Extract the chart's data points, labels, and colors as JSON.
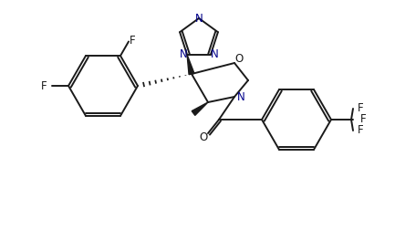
{
  "bg_color": "#ffffff",
  "line_color": "#1a1a1a",
  "atom_colors": {
    "N": "#00008b",
    "O": "#000000",
    "F": "#000000",
    "C": "#1a1a1a"
  },
  "figsize": [
    4.33,
    2.64
  ],
  "dpi": 100,
  "lw": 1.4
}
